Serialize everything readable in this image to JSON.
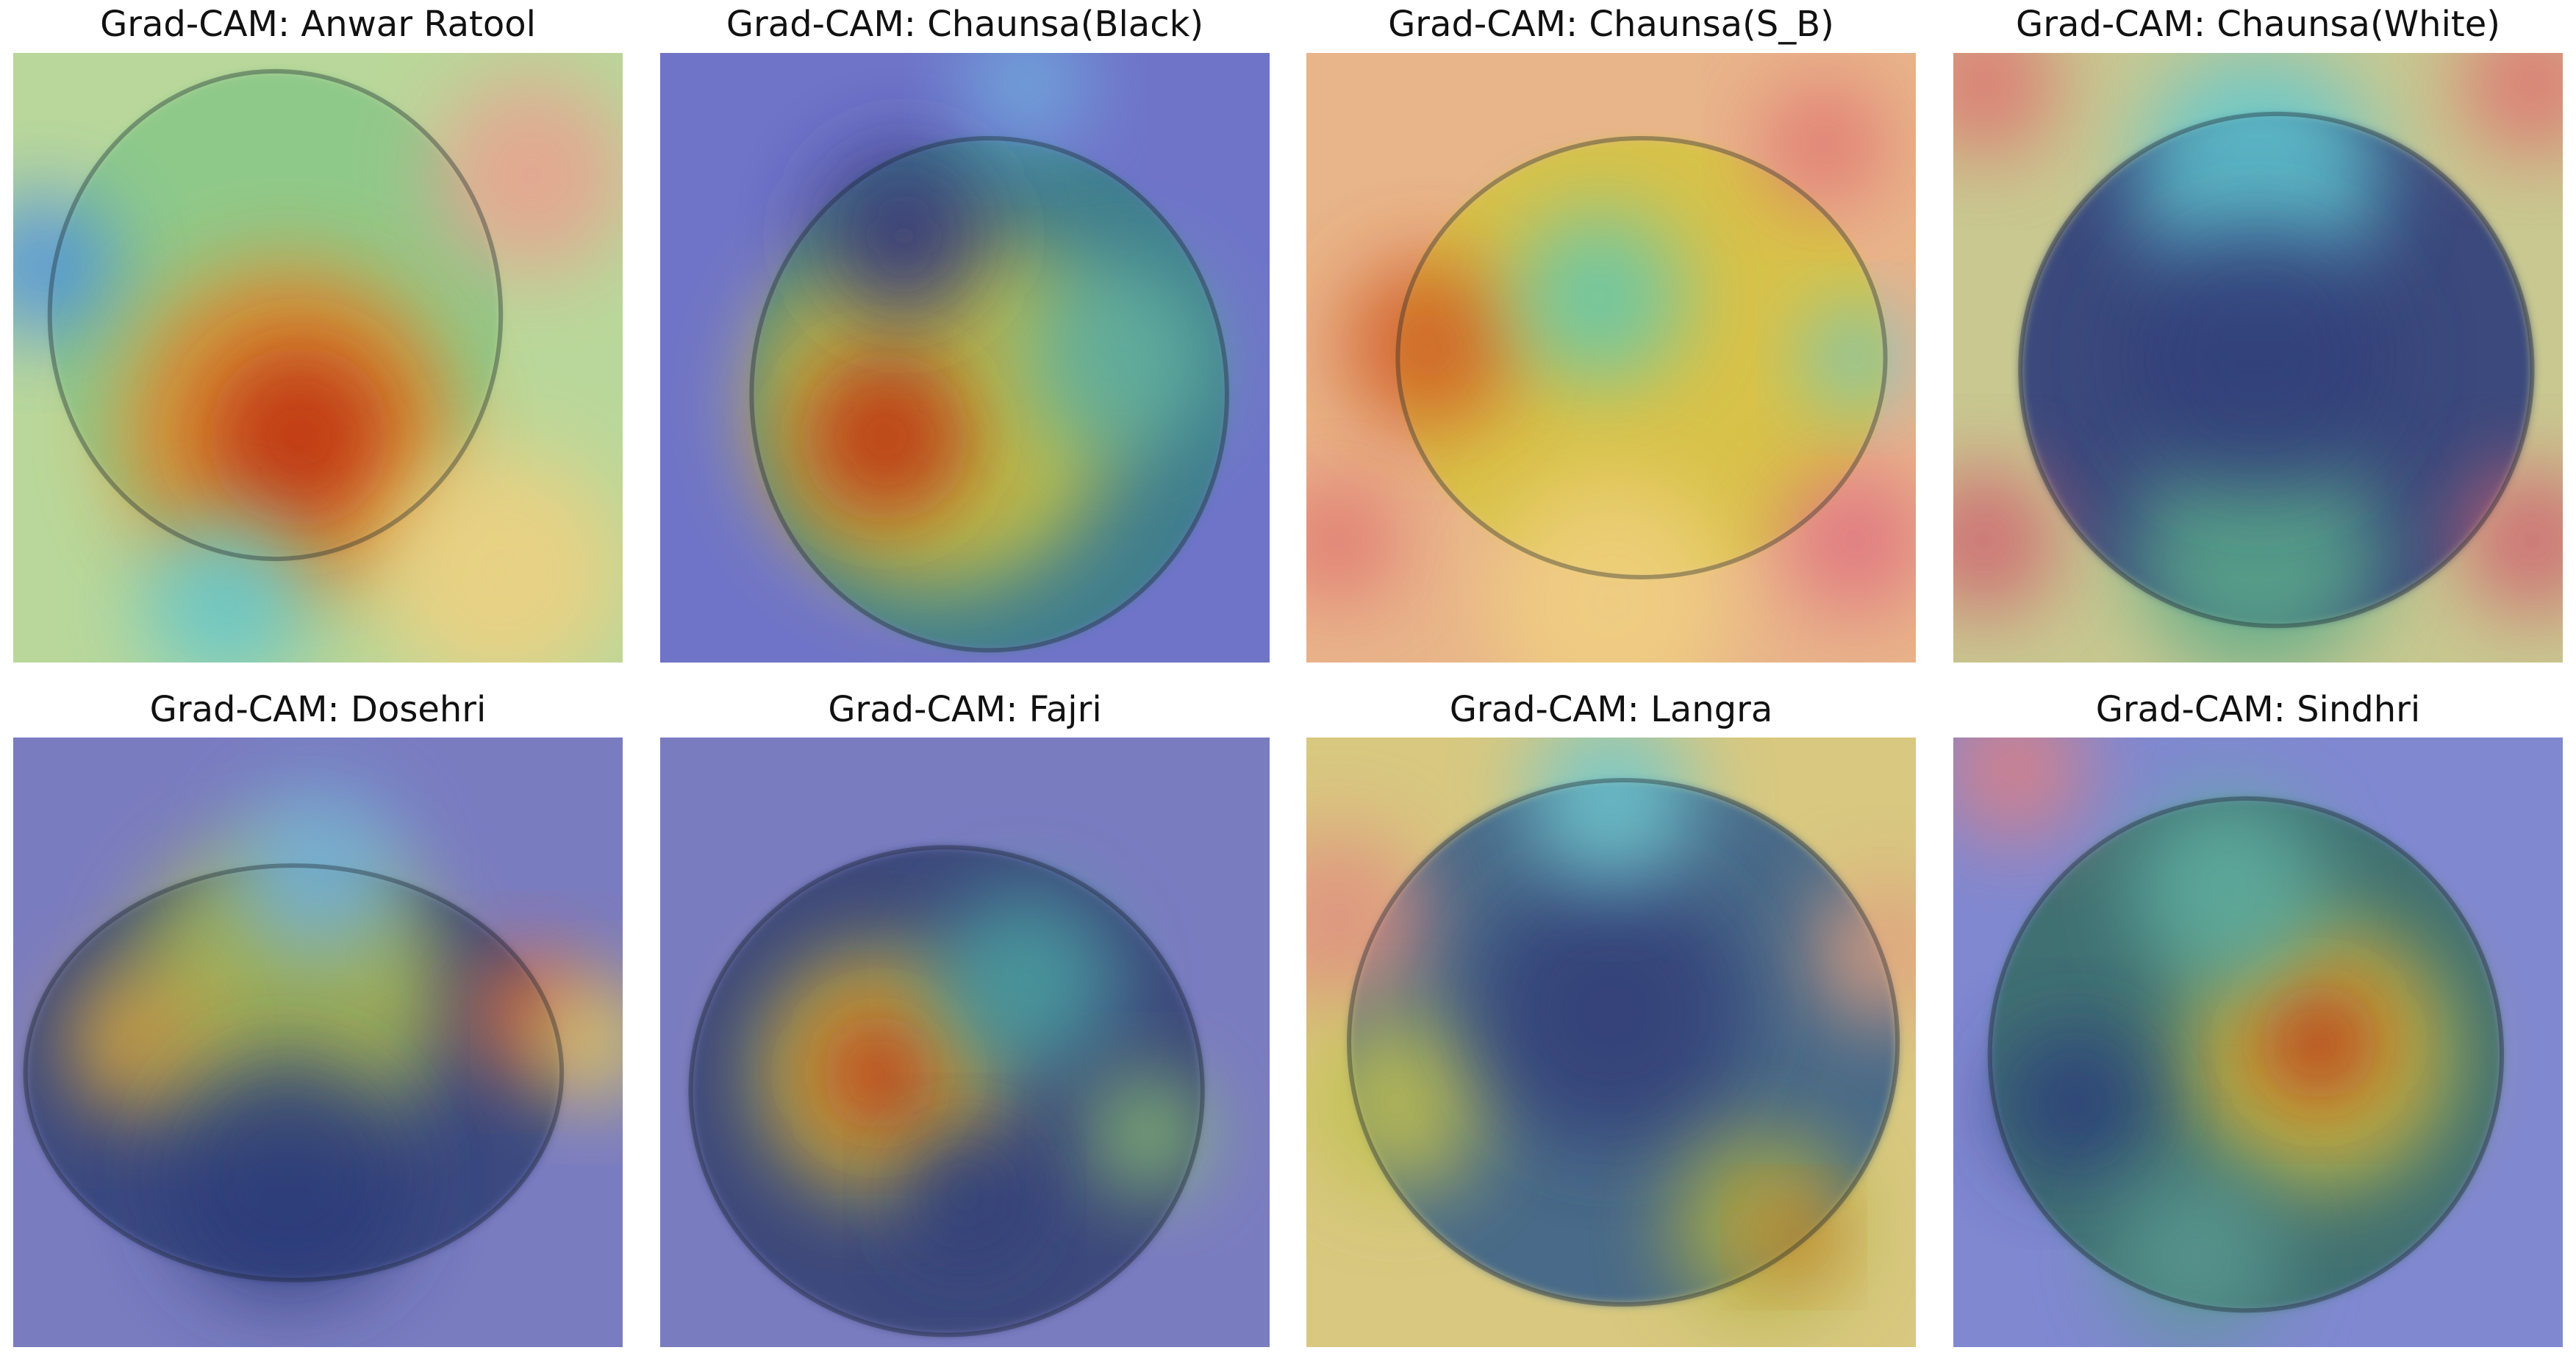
{
  "panels": [
    {
      "title": "Grad-CAM: Anwar Ratool"
    },
    {
      "title": "Grad-CAM: Chaunsa(Black)"
    },
    {
      "title": "Grad-CAM: Chaunsa(S_B)"
    },
    {
      "title": "Grad-CAM: Chaunsa(White)"
    },
    {
      "title": "Grad-CAM: Dosehri"
    },
    {
      "title": "Grad-CAM: Fajri"
    },
    {
      "title": "Grad-CAM: Langra"
    },
    {
      "title": "Grad-CAM: Sindhri"
    }
  ]
}
